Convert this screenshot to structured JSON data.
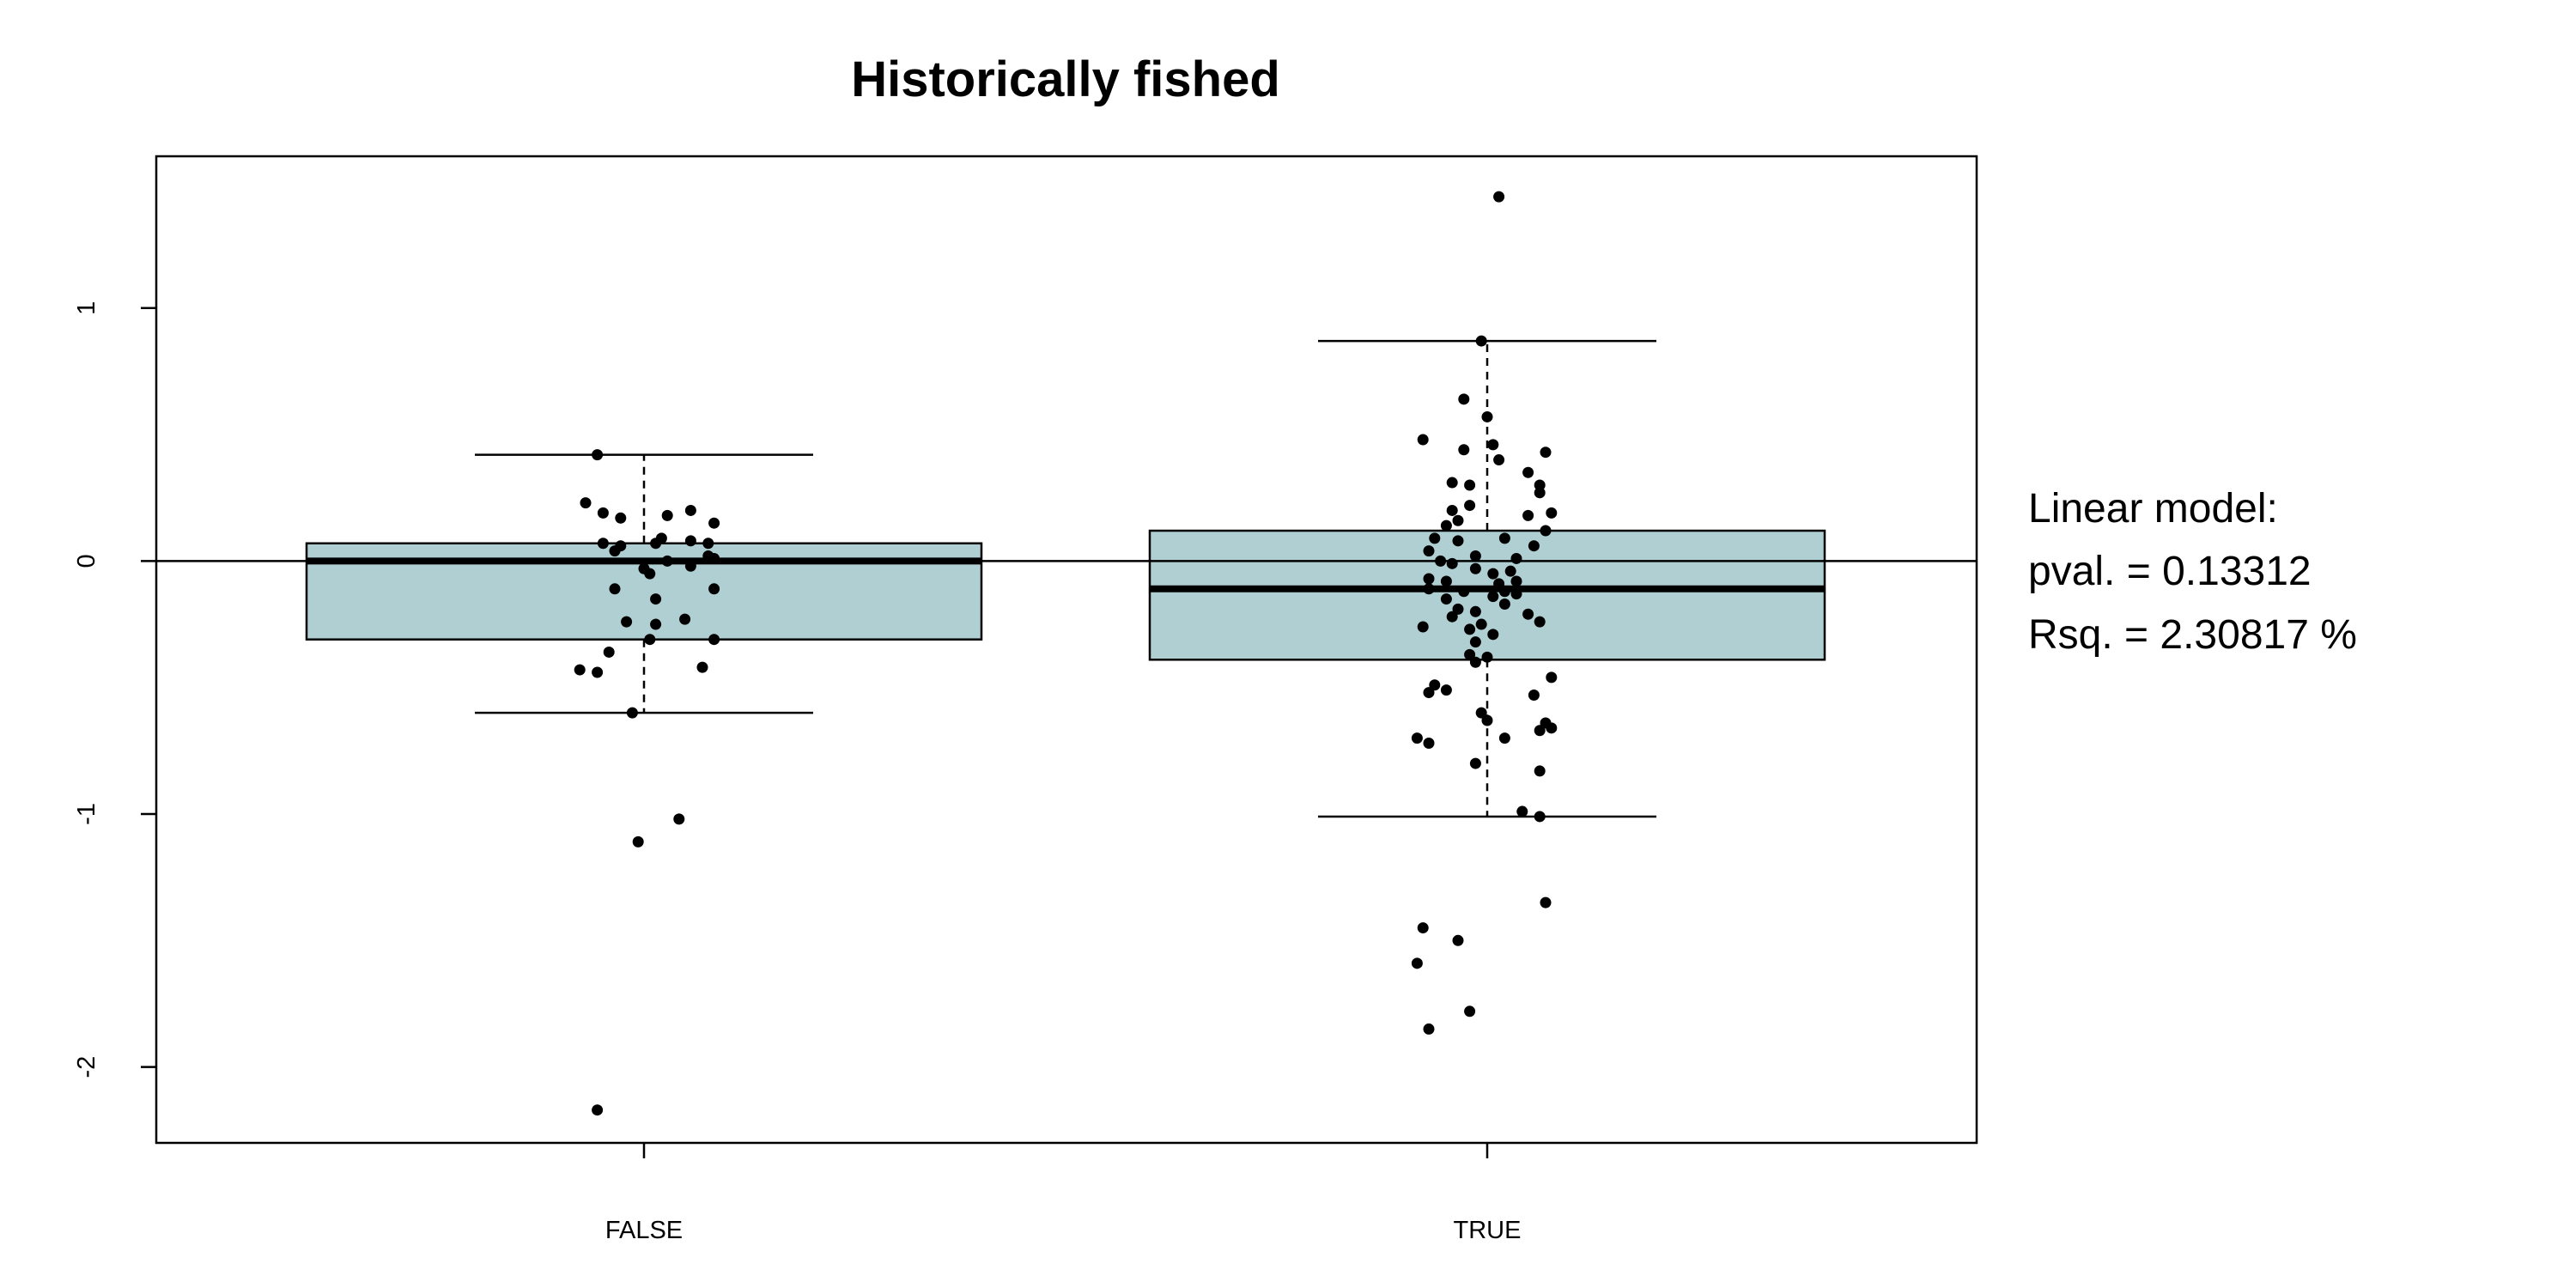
{
  "chart_data": {
    "type": "boxplot",
    "title": "Historically fished",
    "xlabel": "",
    "ylabel": "",
    "ylim": [
      -2.3,
      1.6
    ],
    "yticks": [
      1,
      0,
      -1,
      -2
    ],
    "categories": [
      "FALSE",
      "TRUE"
    ],
    "box_color": "#b0cfd2",
    "reference_line_y": 0,
    "boxes": [
      {
        "category": "FALSE",
        "whisker_low": -0.6,
        "q1": -0.31,
        "median": 0.0,
        "q3": 0.07,
        "whisker_high": 0.42
      },
      {
        "category": "TRUE",
        "whisker_low": -1.01,
        "q1": -0.39,
        "median": -0.11,
        "q3": 0.12,
        "whisker_high": 0.87
      }
    ],
    "points": [
      {
        "category": "FALSE",
        "x_offset": -0.08,
        "y": 0.42
      },
      {
        "category": "FALSE",
        "x_offset": -0.1,
        "y": 0.23
      },
      {
        "category": "FALSE",
        "x_offset": -0.07,
        "y": 0.19
      },
      {
        "category": "FALSE",
        "x_offset": -0.04,
        "y": 0.17
      },
      {
        "category": "FALSE",
        "x_offset": 0.04,
        "y": 0.18
      },
      {
        "category": "FALSE",
        "x_offset": 0.08,
        "y": 0.2
      },
      {
        "category": "FALSE",
        "x_offset": 0.12,
        "y": 0.15
      },
      {
        "category": "FALSE",
        "x_offset": -0.07,
        "y": 0.07
      },
      {
        "category": "FALSE",
        "x_offset": -0.05,
        "y": 0.04
      },
      {
        "category": "FALSE",
        "x_offset": -0.04,
        "y": 0.06
      },
      {
        "category": "FALSE",
        "x_offset": 0.02,
        "y": 0.07
      },
      {
        "category": "FALSE",
        "x_offset": 0.03,
        "y": 0.09
      },
      {
        "category": "FALSE",
        "x_offset": 0.08,
        "y": 0.08
      },
      {
        "category": "FALSE",
        "x_offset": 0.11,
        "y": 0.07
      },
      {
        "category": "FALSE",
        "x_offset": 0.12,
        "y": 0.01
      },
      {
        "category": "FALSE",
        "x_offset": 0.11,
        "y": 0.02
      },
      {
        "category": "FALSE",
        "x_offset": 0.04,
        "y": 0.0
      },
      {
        "category": "FALSE",
        "x_offset": 0.08,
        "y": -0.02
      },
      {
        "category": "FALSE",
        "x_offset": 0.0,
        "y": -0.03
      },
      {
        "category": "FALSE",
        "x_offset": 0.01,
        "y": -0.05
      },
      {
        "category": "FALSE",
        "x_offset": -0.05,
        "y": -0.11
      },
      {
        "category": "FALSE",
        "x_offset": 0.12,
        "y": -0.11
      },
      {
        "category": "FALSE",
        "x_offset": 0.02,
        "y": -0.15
      },
      {
        "category": "FALSE",
        "x_offset": -0.03,
        "y": -0.24
      },
      {
        "category": "FALSE",
        "x_offset": 0.02,
        "y": -0.25
      },
      {
        "category": "FALSE",
        "x_offset": 0.07,
        "y": -0.23
      },
      {
        "category": "FALSE",
        "x_offset": 0.01,
        "y": -0.31
      },
      {
        "category": "FALSE",
        "x_offset": 0.12,
        "y": -0.31
      },
      {
        "category": "FALSE",
        "x_offset": -0.06,
        "y": -0.36
      },
      {
        "category": "FALSE",
        "x_offset": -0.11,
        "y": -0.43
      },
      {
        "category": "FALSE",
        "x_offset": -0.08,
        "y": -0.44
      },
      {
        "category": "FALSE",
        "x_offset": 0.1,
        "y": -0.42
      },
      {
        "category": "FALSE",
        "x_offset": -0.02,
        "y": -0.6
      },
      {
        "category": "FALSE",
        "x_offset": 0.06,
        "y": -1.02
      },
      {
        "category": "FALSE",
        "x_offset": -0.01,
        "y": -1.11
      },
      {
        "category": "FALSE",
        "x_offset": -0.08,
        "y": -2.17
      },
      {
        "category": "TRUE",
        "x_offset": 0.02,
        "y": 1.44
      },
      {
        "category": "TRUE",
        "x_offset": -0.01,
        "y": 0.87
      },
      {
        "category": "TRUE",
        "x_offset": -0.04,
        "y": 0.64
      },
      {
        "category": "TRUE",
        "x_offset": 0.0,
        "y": 0.57
      },
      {
        "category": "TRUE",
        "x_offset": -0.11,
        "y": 0.48
      },
      {
        "category": "TRUE",
        "x_offset": 0.01,
        "y": 0.46
      },
      {
        "category": "TRUE",
        "x_offset": -0.04,
        "y": 0.44
      },
      {
        "category": "TRUE",
        "x_offset": 0.02,
        "y": 0.4
      },
      {
        "category": "TRUE",
        "x_offset": 0.1,
        "y": 0.43
      },
      {
        "category": "TRUE",
        "x_offset": 0.07,
        "y": 0.35
      },
      {
        "category": "TRUE",
        "x_offset": -0.06,
        "y": 0.31
      },
      {
        "category": "TRUE",
        "x_offset": -0.03,
        "y": 0.3
      },
      {
        "category": "TRUE",
        "x_offset": 0.09,
        "y": 0.3
      },
      {
        "category": "TRUE",
        "x_offset": 0.09,
        "y": 0.27
      },
      {
        "category": "TRUE",
        "x_offset": -0.06,
        "y": 0.2
      },
      {
        "category": "TRUE",
        "x_offset": -0.03,
        "y": 0.22
      },
      {
        "category": "TRUE",
        "x_offset": 0.07,
        "y": 0.18
      },
      {
        "category": "TRUE",
        "x_offset": 0.11,
        "y": 0.19
      },
      {
        "category": "TRUE",
        "x_offset": -0.05,
        "y": 0.16
      },
      {
        "category": "TRUE",
        "x_offset": -0.07,
        "y": 0.14
      },
      {
        "category": "TRUE",
        "x_offset": -0.09,
        "y": 0.09
      },
      {
        "category": "TRUE",
        "x_offset": -0.05,
        "y": 0.08
      },
      {
        "category": "TRUE",
        "x_offset": 0.03,
        "y": 0.09
      },
      {
        "category": "TRUE",
        "x_offset": 0.08,
        "y": 0.06
      },
      {
        "category": "TRUE",
        "x_offset": 0.1,
        "y": 0.12
      },
      {
        "category": "TRUE",
        "x_offset": -0.1,
        "y": 0.04
      },
      {
        "category": "TRUE",
        "x_offset": -0.02,
        "y": 0.02
      },
      {
        "category": "TRUE",
        "x_offset": -0.08,
        "y": 0.0
      },
      {
        "category": "TRUE",
        "x_offset": -0.06,
        "y": -0.01
      },
      {
        "category": "TRUE",
        "x_offset": -0.02,
        "y": -0.03
      },
      {
        "category": "TRUE",
        "x_offset": 0.01,
        "y": -0.05
      },
      {
        "category": "TRUE",
        "x_offset": 0.05,
        "y": 0.01
      },
      {
        "category": "TRUE",
        "x_offset": 0.04,
        "y": -0.04
      },
      {
        "category": "TRUE",
        "x_offset": -0.1,
        "y": -0.07
      },
      {
        "category": "TRUE",
        "x_offset": -0.07,
        "y": -0.08
      },
      {
        "category": "TRUE",
        "x_offset": 0.02,
        "y": -0.09
      },
      {
        "category": "TRUE",
        "x_offset": 0.05,
        "y": -0.08
      },
      {
        "category": "TRUE",
        "x_offset": -0.1,
        "y": -0.11
      },
      {
        "category": "TRUE",
        "x_offset": -0.04,
        "y": -0.12
      },
      {
        "category": "TRUE",
        "x_offset": 0.03,
        "y": -0.12
      },
      {
        "category": "TRUE",
        "x_offset": 0.05,
        "y": -0.13
      },
      {
        "category": "TRUE",
        "x_offset": 0.01,
        "y": -0.14
      },
      {
        "category": "TRUE",
        "x_offset": -0.07,
        "y": -0.15
      },
      {
        "category": "TRUE",
        "x_offset": 0.03,
        "y": -0.17
      },
      {
        "category": "TRUE",
        "x_offset": -0.05,
        "y": -0.19
      },
      {
        "category": "TRUE",
        "x_offset": -0.02,
        "y": -0.2
      },
      {
        "category": "TRUE",
        "x_offset": 0.07,
        "y": -0.21
      },
      {
        "category": "TRUE",
        "x_offset": -0.06,
        "y": -0.22
      },
      {
        "category": "TRUE",
        "x_offset": 0.09,
        "y": -0.24
      },
      {
        "category": "TRUE",
        "x_offset": -0.11,
        "y": -0.26
      },
      {
        "category": "TRUE",
        "x_offset": -0.01,
        "y": -0.25
      },
      {
        "category": "TRUE",
        "x_offset": -0.03,
        "y": -0.27
      },
      {
        "category": "TRUE",
        "x_offset": 0.01,
        "y": -0.29
      },
      {
        "category": "TRUE",
        "x_offset": -0.02,
        "y": -0.32
      },
      {
        "category": "TRUE",
        "x_offset": -0.03,
        "y": -0.37
      },
      {
        "category": "TRUE",
        "x_offset": 0.0,
        "y": -0.38
      },
      {
        "category": "TRUE",
        "x_offset": -0.02,
        "y": -0.4
      },
      {
        "category": "TRUE",
        "x_offset": 0.11,
        "y": -0.46
      },
      {
        "category": "TRUE",
        "x_offset": -0.09,
        "y": -0.49
      },
      {
        "category": "TRUE",
        "x_offset": -0.1,
        "y": -0.52
      },
      {
        "category": "TRUE",
        "x_offset": -0.07,
        "y": -0.51
      },
      {
        "category": "TRUE",
        "x_offset": 0.08,
        "y": -0.53
      },
      {
        "category": "TRUE",
        "x_offset": -0.01,
        "y": -0.6
      },
      {
        "category": "TRUE",
        "x_offset": 0.0,
        "y": -0.63
      },
      {
        "category": "TRUE",
        "x_offset": 0.1,
        "y": -0.64
      },
      {
        "category": "TRUE",
        "x_offset": 0.11,
        "y": -0.66
      },
      {
        "category": "TRUE",
        "x_offset": 0.09,
        "y": -0.67
      },
      {
        "category": "TRUE",
        "x_offset": 0.03,
        "y": -0.7
      },
      {
        "category": "TRUE",
        "x_offset": -0.12,
        "y": -0.7
      },
      {
        "category": "TRUE",
        "x_offset": -0.1,
        "y": -0.72
      },
      {
        "category": "TRUE",
        "x_offset": -0.02,
        "y": -0.8
      },
      {
        "category": "TRUE",
        "x_offset": 0.09,
        "y": -0.83
      },
      {
        "category": "TRUE",
        "x_offset": 0.06,
        "y": -0.99
      },
      {
        "category": "TRUE",
        "x_offset": 0.09,
        "y": -1.01
      },
      {
        "category": "TRUE",
        "x_offset": 0.1,
        "y": -1.35
      },
      {
        "category": "TRUE",
        "x_offset": -0.11,
        "y": -1.45
      },
      {
        "category": "TRUE",
        "x_offset": -0.05,
        "y": -1.5
      },
      {
        "category": "TRUE",
        "x_offset": -0.12,
        "y": -1.59
      },
      {
        "category": "TRUE",
        "x_offset": -0.03,
        "y": -1.78
      },
      {
        "category": "TRUE",
        "x_offset": -0.1,
        "y": -1.85
      }
    ],
    "annotation_lines": [
      "Linear model:",
      "pval. = 0.13312",
      "Rsq. = 2.30817 %"
    ],
    "grid": false,
    "legend": "none"
  }
}
